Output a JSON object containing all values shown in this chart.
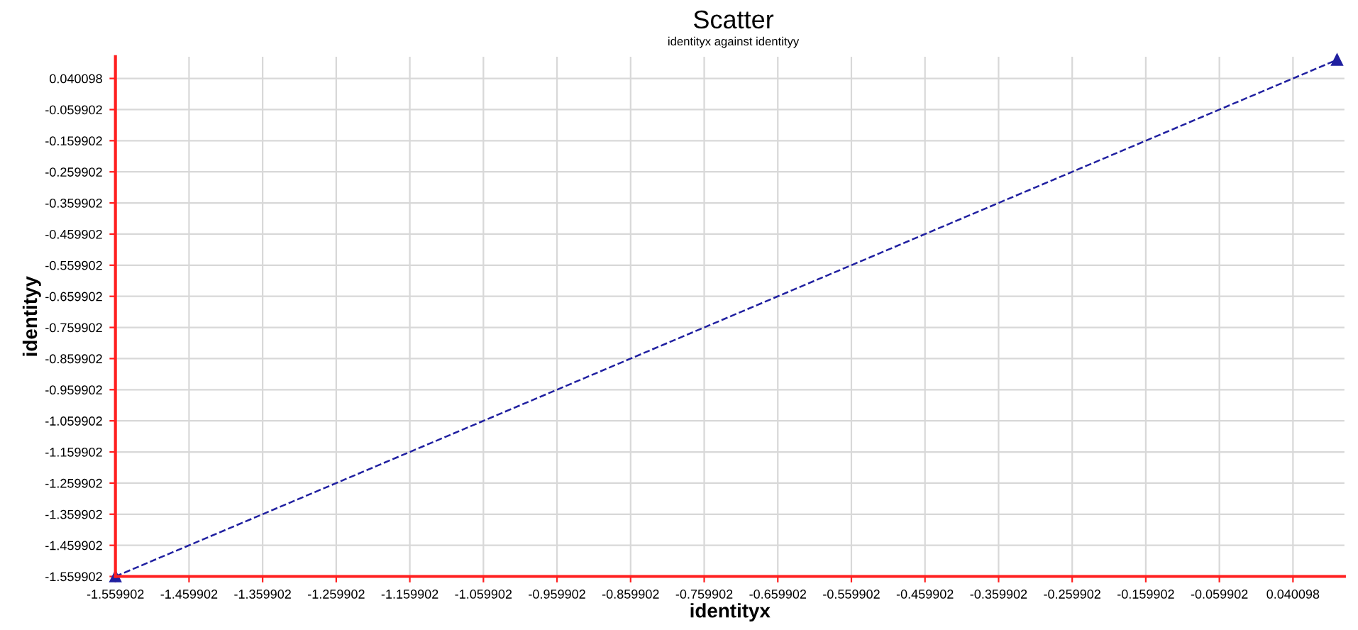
{
  "chart_data": {
    "type": "line",
    "title": "Scatter",
    "subtitle": "identityx against identityy",
    "xlabel": "identityx",
    "ylabel": "identityy",
    "x": [
      -1.559902,
      0.1
    ],
    "series": [
      {
        "color": "#2020a0",
        "values": [
          -1.559902,
          0.1
        ]
      }
    ],
    "marker": "triangle",
    "line_style": "dashed",
    "grid": true,
    "xlim": [
      -1.559902,
      0.11
    ],
    "ylim": [
      -1.559902,
      0.11
    ],
    "xticks": [
      -1.559902,
      -1.459902,
      -1.359902,
      -1.259902,
      -1.159902,
      -1.059902,
      -0.959902,
      -0.859902,
      -0.759902,
      -0.659902,
      -0.559902,
      -0.459902,
      -0.359902,
      -0.259902,
      -0.159902,
      -0.059902,
      0.040098
    ],
    "yticks": [
      -1.559902,
      -1.459902,
      -1.359902,
      -1.259902,
      -1.159902,
      -1.059902,
      -0.959902,
      -0.859902,
      -0.759902,
      -0.659902,
      -0.559902,
      -0.459902,
      -0.359902,
      -0.259902,
      -0.159902,
      -0.059902,
      0.040098
    ]
  }
}
